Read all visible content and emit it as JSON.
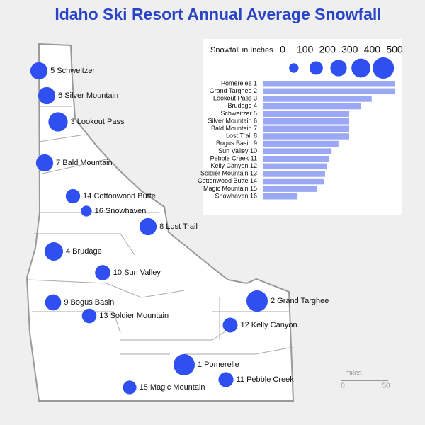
{
  "title": "Idaho Ski Resort Annual Average Snowfall",
  "chart_data": {
    "type": "bar",
    "orientation": "horizontal",
    "color": "#9aa8f5",
    "size_label": "Snowfall in Inches",
    "xlim": [
      0,
      500
    ],
    "xticks": [
      0,
      100,
      200,
      300,
      400,
      500
    ],
    "size_legend": [
      100,
      200,
      300,
      400,
      500
    ],
    "marker_color": "#2f4ff0",
    "categories": [
      "Pomerelee 1",
      "Grand Targhee 2",
      "Lookout Pass 3",
      "Brudage 4",
      "Schweitzer 5",
      "Silver Mountain 6",
      "Bald Mountain 7",
      "Lost Trail 8",
      "Bogus Basin 9",
      "Sun Valley 10",
      "Pebble Creek 11",
      "Kelly Canyon 12",
      "Soldier Mountain 13",
      "Cottonwood Butte 14",
      "Magic Mountain 15",
      "Snowhaven 16"
    ],
    "values": [
      500,
      500,
      413,
      373,
      327,
      327,
      327,
      327,
      286,
      260,
      250,
      243,
      235,
      230,
      205,
      130
    ]
  },
  "map_labels": [
    "1 Pomerelle",
    "2 Grand Targhee",
    "3 Lookout Pass",
    "4 Brudage",
    "5 Schweitzer",
    "6 Silver Mountain",
    "7 Bald Mountain",
    "8 Lost Trail",
    "9 Bogus Basin",
    "10 Sun Valley",
    "11 Pebble Creek",
    "12 Kelly Canyon",
    "13 Soldier Mountain",
    "14 Cottonwood Butte",
    "15 Magic Mountain",
    "16 Snowhaven"
  ],
  "scale_bar": {
    "unit": "miles",
    "start": "0",
    "end": "50"
  }
}
